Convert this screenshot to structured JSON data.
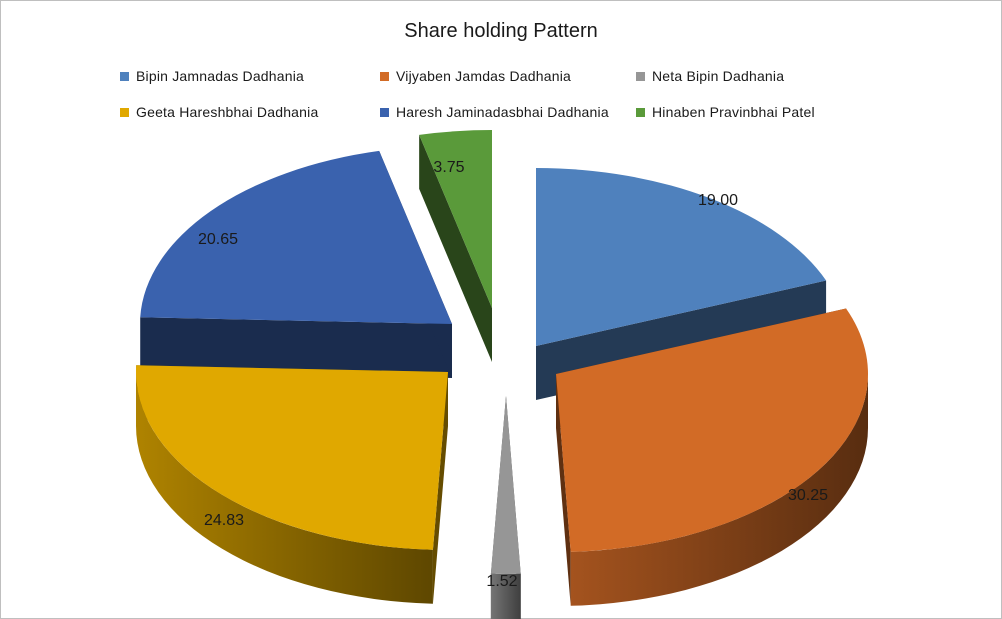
{
  "chart_data": {
    "type": "pie",
    "title": "Share holding Pattern",
    "legend_position": "top",
    "slices": [
      {
        "name": "Bipin Jamnadas Dadhania",
        "value": 19.0,
        "label": "19.00",
        "color": "#4f81bd"
      },
      {
        "name": "Vijyaben Jamdas Dadhania",
        "value": 30.25,
        "label": "30.25",
        "color": "#d26b26"
      },
      {
        "name": "Neta Bipin Dadhania",
        "value": 1.52,
        "label": "1.52",
        "color": "#969696"
      },
      {
        "name": "Geeta Hareshbhai Dadhania",
        "value": 24.83,
        "label": "24.83",
        "color": "#e0a800"
      },
      {
        "name": "Haresh Jaminadasbhai Dadhania",
        "value": 20.65,
        "label": "20.65",
        "color": "#3a62ae"
      },
      {
        "name": "Hinaben Pravinbhai Patel",
        "value": 3.75,
        "label": "3.75",
        "color": "#5a9a3a"
      }
    ]
  }
}
